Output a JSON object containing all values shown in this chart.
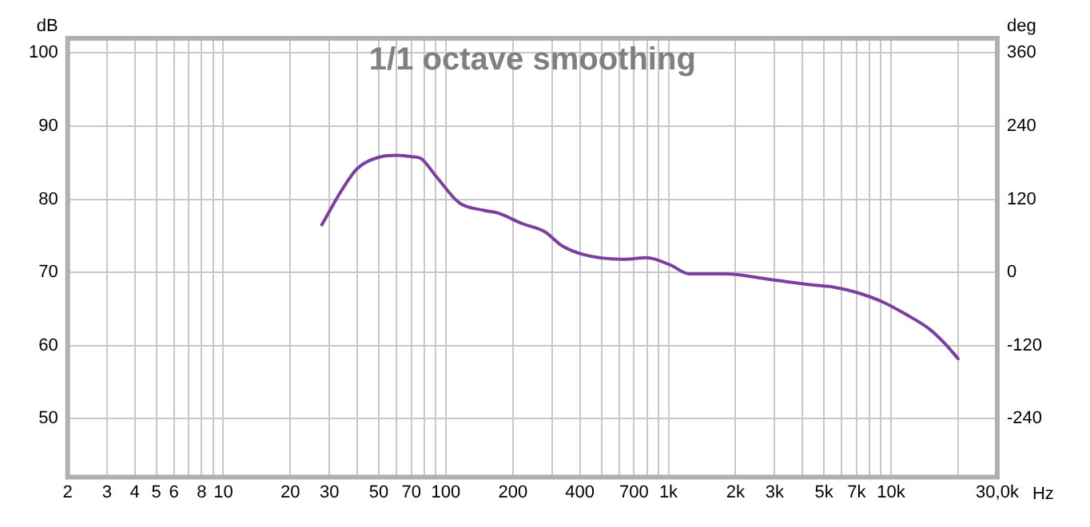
{
  "chart_data": {
    "type": "line",
    "title": "1/1 octave smoothing",
    "xlabel": "Hz",
    "ylabel": "dB",
    "y2label": "deg",
    "x": [
      27.7,
      34,
      40,
      51,
      60,
      71,
      77,
      90,
      115,
      147,
      172,
      219,
      280,
      330,
      420,
      630,
      800,
      1020,
      1240,
      1800,
      2900,
      4700,
      5500,
      7100,
      9100,
      11600,
      14800,
      17400,
      20000
    ],
    "series": [
      {
        "color": "#7b3fa0",
        "values": [
          76.5,
          81.2,
          84.2,
          85.8,
          86.0,
          85.8,
          85.6,
          83.2,
          79.5,
          78.5,
          78.1,
          76.7,
          75.5,
          73.7,
          72.4,
          71.8,
          72.0,
          71.0,
          69.8,
          69.8,
          69.0,
          68.2,
          68.0,
          67.2,
          66.0,
          64.3,
          62.3,
          60.3,
          58.2
        ]
      }
    ],
    "log": "x",
    "grid": true,
    "legend": false,
    "marker": "none",
    "line_style": "solid",
    "xlim": [
      2,
      30000
    ],
    "xticks": [
      2,
      3,
      4,
      5,
      6,
      {
        "value": 7,
        "label": null
      },
      8,
      {
        "value": 9,
        "label": null
      },
      10,
      20,
      30,
      {
        "value": 40,
        "label": null
      },
      50,
      {
        "value": 60,
        "label": null
      },
      70,
      {
        "value": 80,
        "label": null
      },
      {
        "value": 90,
        "label": null
      },
      100,
      200,
      {
        "value": 300,
        "label": null
      },
      400,
      {
        "value": 500,
        "label": null
      },
      {
        "value": 600,
        "label": null
      },
      700,
      {
        "value": 800,
        "label": null
      },
      {
        "value": 900,
        "label": null
      },
      {
        "value": 1000,
        "label": "1k"
      },
      {
        "value": 2000,
        "label": "2k"
      },
      {
        "value": 3000,
        "label": "3k"
      },
      {
        "value": 4000,
        "label": null
      },
      {
        "value": 5000,
        "label": "5k"
      },
      {
        "value": 6000,
        "label": null
      },
      {
        "value": 7000,
        "label": "7k"
      },
      {
        "value": 8000,
        "label": null
      },
      {
        "value": 9000,
        "label": null
      },
      {
        "value": 10000,
        "label": "10k"
      },
      {
        "value": 20000,
        "label": null
      },
      {
        "value": 30000,
        "label": "30,0k"
      }
    ],
    "ylim": [
      42,
      102
    ],
    "yticks": [
      50,
      60,
      70,
      80,
      90,
      100
    ],
    "y2lim": [
      -336,
      384
    ],
    "y2ticks": [
      -240,
      -120,
      0,
      120,
      240,
      360
    ]
  }
}
